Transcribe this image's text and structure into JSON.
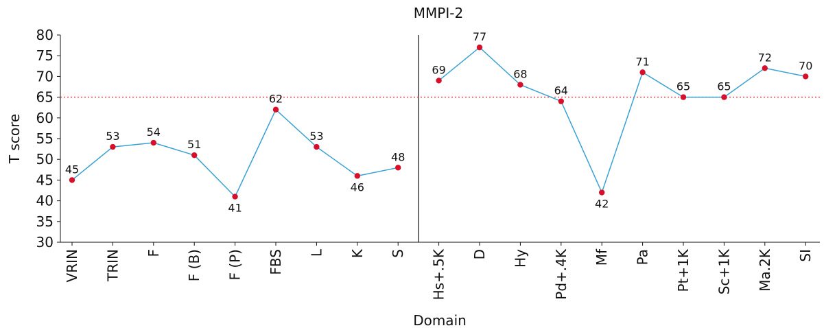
{
  "chart_data": {
    "type": "line",
    "title": "MMPI-2",
    "xlabel": "Domain",
    "ylabel": "T score",
    "ylim": [
      30,
      80
    ],
    "yticks": [
      30,
      35,
      40,
      45,
      50,
      55,
      60,
      65,
      70,
      75,
      80
    ],
    "reference_line": {
      "value": 65,
      "style": "dotted",
      "color": "#e8303a"
    },
    "separator_after": "S",
    "line_color": "#3aa0d4",
    "marker_color": "#d6102a",
    "groups": [
      {
        "categories": [
          "VRIN",
          "TRIN",
          "F",
          "F (B)",
          "F (P)",
          "FBS",
          "L",
          "K",
          "S"
        ],
        "values": [
          45,
          53,
          54,
          51,
          41,
          62,
          53,
          46,
          48
        ]
      },
      {
        "categories": [
          "Hs+.5K",
          "D",
          "Hy",
          "Pd+.4K",
          "Mf",
          "Pa",
          "Pt+1K",
          "Sc+1K",
          "Ma.2K",
          "SI"
        ],
        "values": [
          69,
          77,
          68,
          64,
          42,
          71,
          65,
          65,
          72,
          70
        ]
      }
    ]
  }
}
